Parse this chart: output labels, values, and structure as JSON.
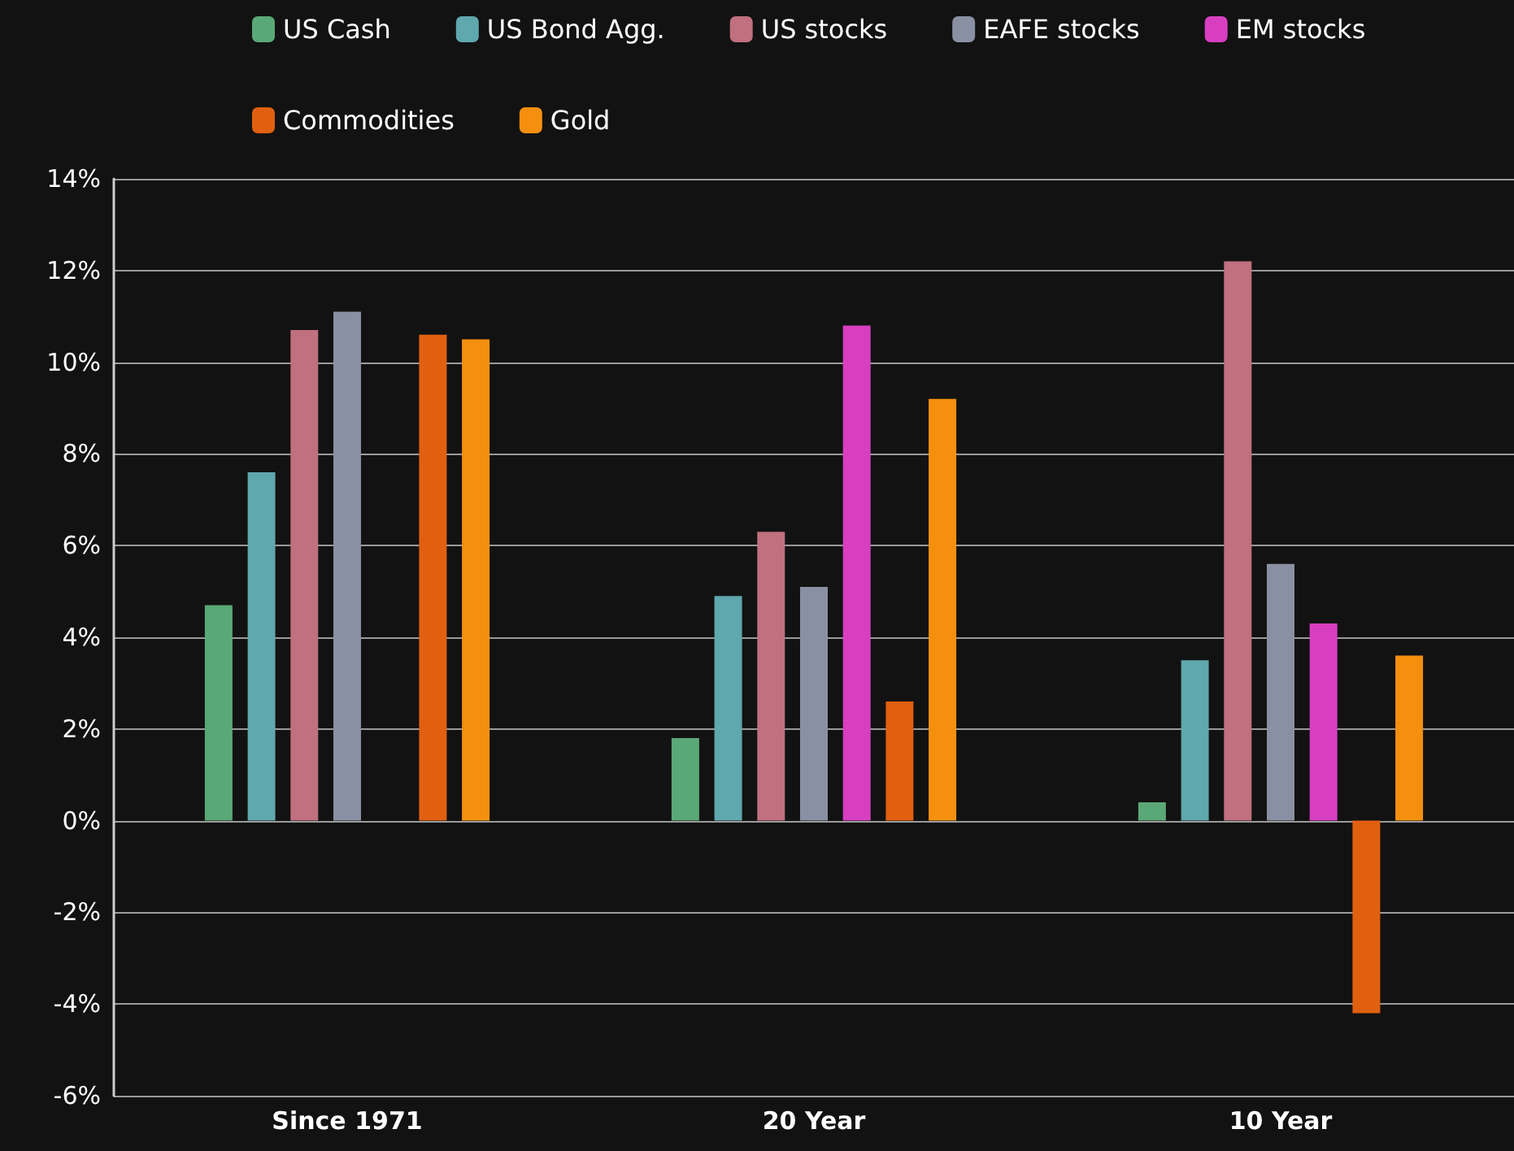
{
  "chart_data": {
    "type": "bar",
    "categories": [
      "Since 1971",
      "20 Year",
      "10 Year"
    ],
    "series": [
      {
        "name": "US Cash",
        "color": "#5aa877",
        "values": [
          4.7,
          1.8,
          0.4
        ]
      },
      {
        "name": "US Bond Agg.",
        "color": "#5fa8ad",
        "values": [
          7.6,
          4.9,
          3.5
        ]
      },
      {
        "name": "US stocks",
        "color": "#c0707f",
        "values": [
          10.7,
          6.3,
          12.2
        ]
      },
      {
        "name": "EAFE stocks",
        "color": "#8a90a3",
        "values": [
          11.1,
          5.1,
          5.6
        ]
      },
      {
        "name": "EM stocks",
        "color": "#d83fc0",
        "values": [
          null,
          10.8,
          4.3
        ]
      },
      {
        "name": "Commodities",
        "color": "#e06010",
        "values": [
          10.6,
          2.6,
          -4.2
        ]
      },
      {
        "name": "Gold",
        "color": "#f5900f",
        "values": [
          10.5,
          9.2,
          3.6
        ]
      }
    ],
    "ylim": [
      -6,
      14
    ],
    "yticks": [
      {
        "value": -6,
        "label": "-6%"
      },
      {
        "value": -4,
        "label": "-4%"
      },
      {
        "value": -2,
        "label": "-2%"
      },
      {
        "value": 0,
        "label": "0%"
      },
      {
        "value": 2,
        "label": "2%"
      },
      {
        "value": 4,
        "label": "4%"
      },
      {
        "value": 6,
        "label": "6%"
      },
      {
        "value": 8,
        "label": "8%"
      },
      {
        "value": 10,
        "label": "10%"
      },
      {
        "value": 12,
        "label": "12%"
      },
      {
        "value": 14,
        "label": "14%"
      }
    ],
    "grid": "y",
    "legend": "top"
  }
}
